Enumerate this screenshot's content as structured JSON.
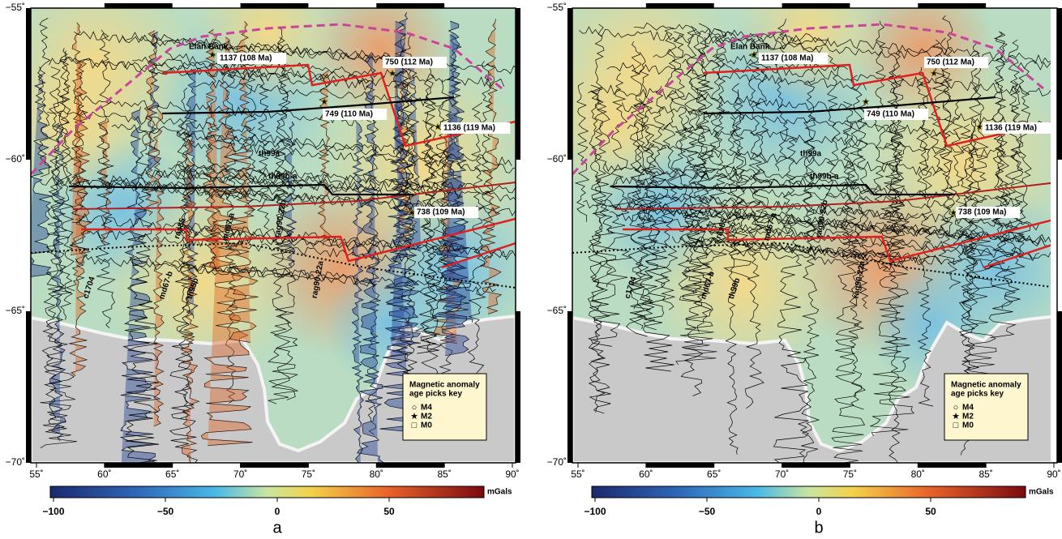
{
  "panels": [
    {
      "label": "a",
      "lat_ticks": [
        {
          "value": -55,
          "label": "−55˚"
        },
        {
          "value": -60,
          "label": "−60˚"
        },
        {
          "value": -65,
          "label": "−65˚"
        },
        {
          "value": -70,
          "label": "−70˚"
        }
      ],
      "lon_ticks": [
        {
          "value": 55,
          "label": "55˚"
        },
        {
          "value": 60,
          "label": "60˚"
        },
        {
          "value": 65,
          "label": "65˚"
        },
        {
          "value": 70,
          "label": "70˚"
        },
        {
          "value": 75,
          "label": "75˚"
        },
        {
          "value": 80,
          "label": "80˚"
        },
        {
          "value": 85,
          "label": "85˚"
        },
        {
          "value": 90,
          "label": "90˚"
        }
      ],
      "annotations": [
        "Elan Bank",
        "1137 (108 Ma)",
        "750 (112 Ma)",
        "749 (110 Ma)",
        "1136 (119 Ma)",
        "738 (109 Ma)",
        "th99a",
        "th99b-a"
      ],
      "track_labels": [
        "c1704",
        "md67-b",
        "th99b",
        "ras85",
        "md67-a",
        "rag90-22b",
        "rag90-22a"
      ],
      "legend": {
        "title": [
          "Magnetic anomaly",
          "age picks key"
        ],
        "items": [
          "M4",
          "M2",
          "M0"
        ]
      },
      "colorbar": {
        "ticks": [
          {
            "value": -100,
            "label": "−100"
          },
          {
            "value": -50,
            "label": "−50"
          },
          {
            "value": 0,
            "label": "0"
          },
          {
            "value": 50,
            "label": "50"
          }
        ],
        "unit": "mGals"
      }
    },
    {
      "label": "b",
      "lat_ticks": [
        {
          "value": -55,
          "label": "−55˚"
        },
        {
          "value": -60,
          "label": "−60˚"
        },
        {
          "value": -65,
          "label": "−65˚"
        },
        {
          "value": -70,
          "label": "−70˚"
        }
      ],
      "lon_ticks": [
        {
          "value": 55,
          "label": "55˚"
        },
        {
          "value": 60,
          "label": "60˚"
        },
        {
          "value": 65,
          "label": "65˚"
        },
        {
          "value": 70,
          "label": "70˚"
        },
        {
          "value": 75,
          "label": "75˚"
        },
        {
          "value": 80,
          "label": "80˚"
        },
        {
          "value": 85,
          "label": "85˚"
        },
        {
          "value": 90,
          "label": "90˚"
        }
      ],
      "annotations": [
        "Elan Bank",
        "1137 (108 Ma)",
        "750 (112 Ma)",
        "749 (110 Ma)",
        "1136 (119 Ma)",
        "738 (109 Ma)",
        "th99a",
        "th99b-a"
      ],
      "track_labels": [
        "c1704",
        "md67-b",
        "th99b",
        "ras85",
        "md67-a",
        "rag90-22b",
        "rag90-22a"
      ],
      "legend": {
        "title": [
          "Magnetic anomaly",
          "age picks key"
        ],
        "items": [
          "M4",
          "M2",
          "M0"
        ]
      },
      "colorbar": {
        "ticks": [
          {
            "value": -100,
            "label": "−100"
          },
          {
            "value": -50,
            "label": "−50"
          },
          {
            "value": 0,
            "label": "0"
          },
          {
            "value": 50,
            "label": "50"
          }
        ],
        "unit": "mGals"
      }
    }
  ]
}
